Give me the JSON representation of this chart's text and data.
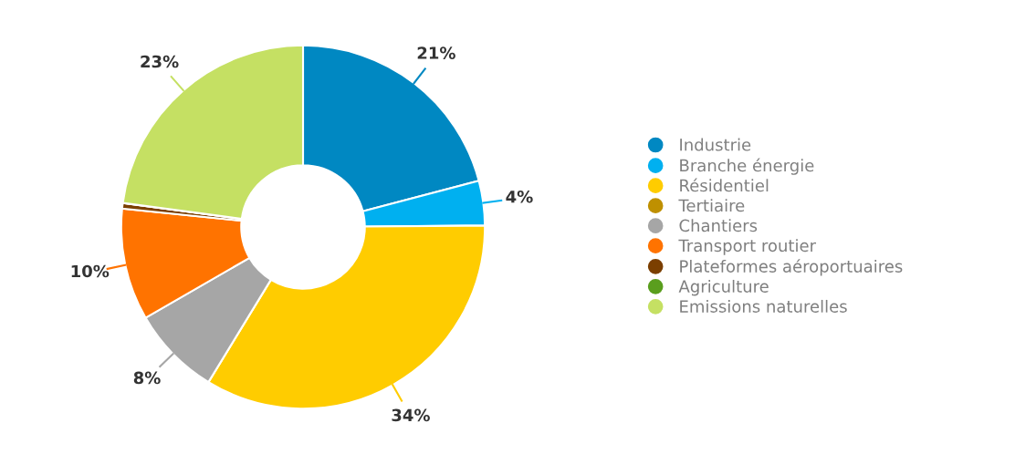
{
  "chart_data": {
    "type": "donut",
    "categories": [
      "Industrie",
      "Branche énergie",
      "Résidentiel",
      "Tertiaire",
      "Chantiers",
      "Transport routier",
      "Plateformes aéroportuaires",
      "Agriculture",
      "Emissions naturelles"
    ],
    "values": [
      21,
      4,
      34,
      0,
      8,
      10,
      0.5,
      0,
      23
    ],
    "value_labels": [
      "21%",
      "4%",
      "34%",
      null,
      "8%",
      "10%",
      null,
      null,
      "23%"
    ],
    "colors": [
      "#0088c2",
      "#00b0f0",
      "#ffcc00",
      "#bf9000",
      "#a6a6a6",
      "#ff7300",
      "#7b3f00",
      "#5a9e1e",
      "#c5e063"
    ],
    "legend": "right"
  }
}
